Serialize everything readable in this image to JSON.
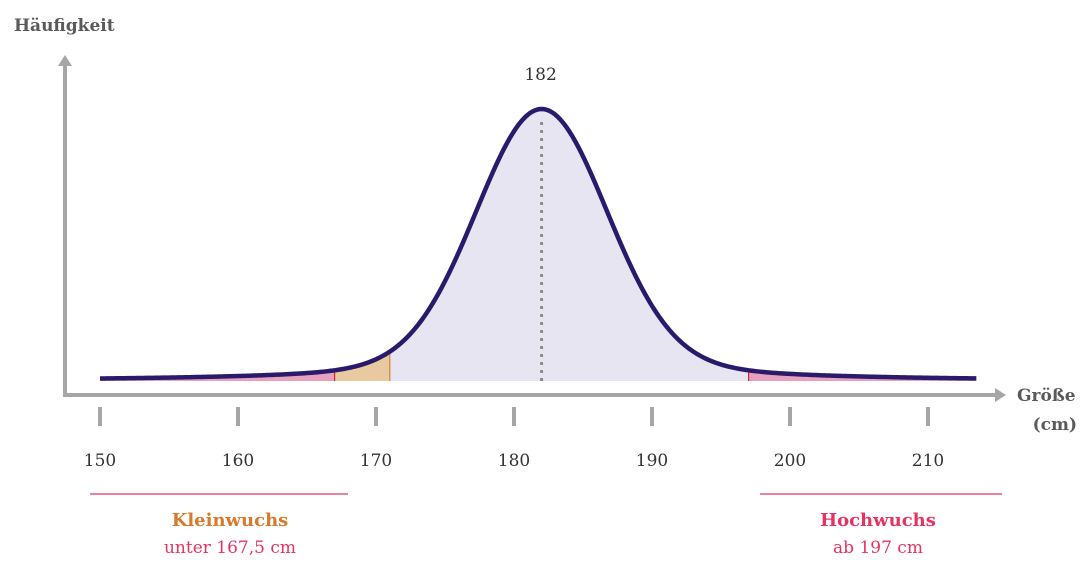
{
  "chart_data": {
    "type": "area",
    "title": "",
    "ylabel": "Häufigkeit",
    "xlabel": "Größe",
    "xlabel_unit": "(cm)",
    "xlim": [
      147,
      215
    ],
    "ticks": [
      150,
      160,
      170,
      180,
      190,
      200,
      210
    ],
    "tick_labels": [
      "150",
      "160",
      "170",
      "180",
      "190",
      "200",
      "210"
    ],
    "peak": {
      "x": 182,
      "label": "182"
    },
    "grid": false,
    "regions": [
      {
        "label": "Kleinwuchs",
        "sublabel": "unter 167,5 cm",
        "x_max": 167.5,
        "color": "#d87a2b"
      },
      {
        "label": "Hochwuchs",
        "sublabel": "ab 197 cm",
        "x_min": 197,
        "color": "#e63462"
      }
    ],
    "colors": {
      "curve": "#2a1a6b",
      "fill": "#e7e5f1",
      "short_fill": "#e8a0bf",
      "mid_fill": "#e9c9a0",
      "tall_fill": "#e8a0bf",
      "axis": "#a6a6a6"
    }
  }
}
